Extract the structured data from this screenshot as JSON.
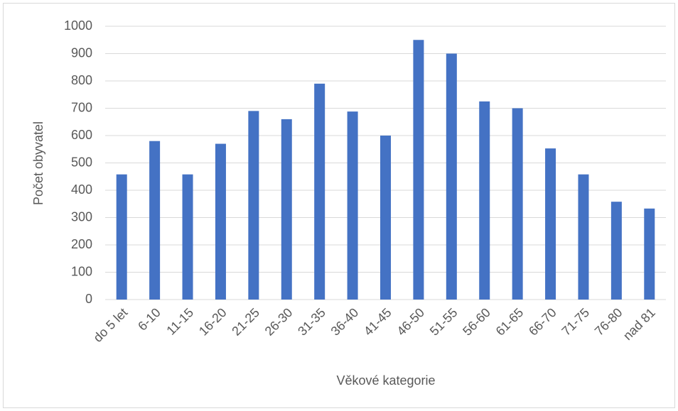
{
  "chart_data": {
    "type": "bar",
    "x_label": "Věkové kategorie",
    "y_label": "Počet obyvatel",
    "categories": [
      "do 5 let",
      "6-10",
      "11-15",
      "16-20",
      "21-25",
      "26-30",
      "31-35",
      "36-40",
      "41-45",
      "46-50",
      "51-55",
      "56-60",
      "61-65",
      "66-70",
      "71-75",
      "76-80",
      "nad 81"
    ],
    "values": [
      458,
      580,
      458,
      570,
      690,
      660,
      790,
      688,
      600,
      950,
      900,
      725,
      700,
      553,
      458,
      358,
      333
    ],
    "color": "#4472c4",
    "ylim": [
      0,
      1000
    ],
    "yticks": [
      0,
      100,
      200,
      300,
      400,
      500,
      600,
      700,
      800,
      900,
      1000
    ],
    "grid": true
  }
}
